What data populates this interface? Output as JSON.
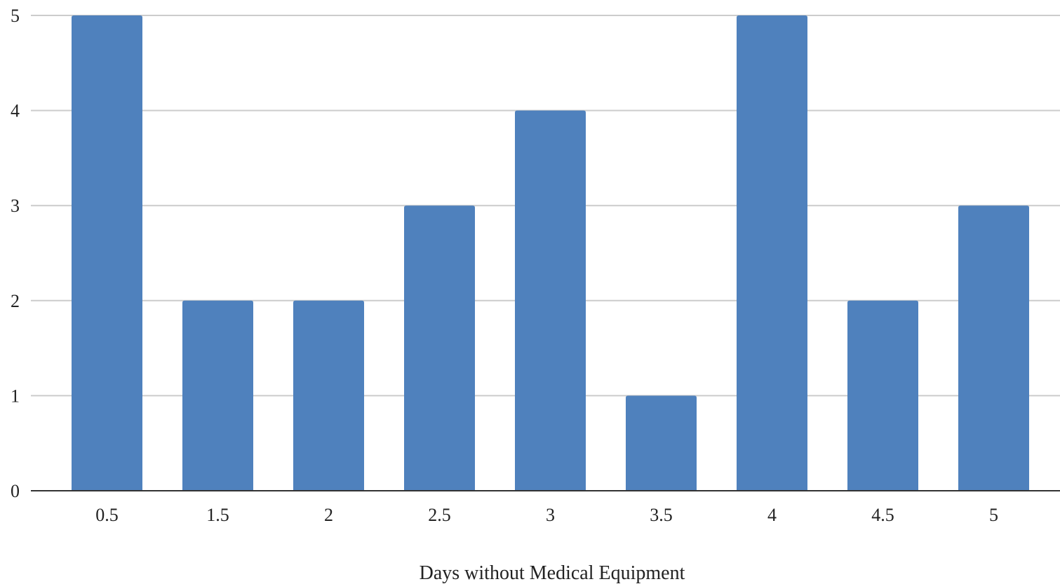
{
  "chart_data": {
    "type": "bar",
    "title": "",
    "xlabel": "Days without Medical Equipment",
    "ylabel": "",
    "categories": [
      "0.5",
      "1.5",
      "2",
      "2.5",
      "3",
      "3.5",
      "4",
      "4.5",
      "5"
    ],
    "values": [
      5,
      2,
      2,
      3,
      4,
      1,
      5,
      2,
      3
    ],
    "ylim": [
      0,
      5
    ],
    "yticks": [
      "0",
      "1",
      "2",
      "3",
      "4",
      "5"
    ],
    "grid": true,
    "legend": "none",
    "colors": {
      "bar": "#4f81bd",
      "grid": "#cccccc",
      "axis": "#333333"
    }
  }
}
